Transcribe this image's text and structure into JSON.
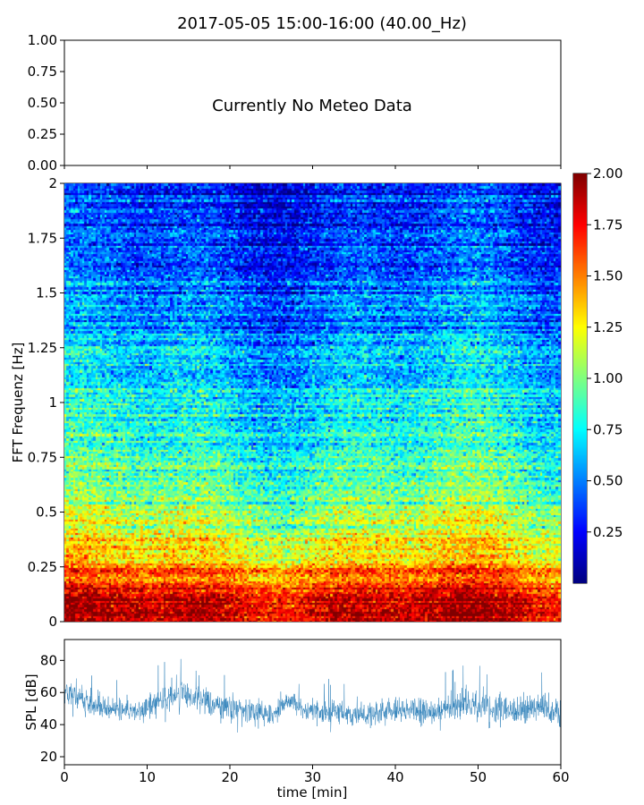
{
  "title": "2017-05-05 15:00-16:00 (40.00_Hz)",
  "meteo_panel": {
    "message": "Currently No Meteo Data",
    "yticks": [
      "1.00",
      "0.75",
      "0.50",
      "0.25",
      "0.00"
    ]
  },
  "chart_data": [
    {
      "type": "line",
      "panel": "meteo",
      "series": [],
      "ylim": [
        0,
        1
      ],
      "yticks": [
        0,
        0.25,
        0.5,
        0.75,
        1.0
      ],
      "ytick_labels": [
        "0.00",
        "0.25",
        "0.50",
        "0.75",
        "1.00"
      ],
      "annotation": "Currently No Meteo Data",
      "xlim": [
        0,
        60
      ],
      "xticks": [
        0,
        10,
        20,
        30,
        40,
        50,
        60
      ]
    },
    {
      "type": "heatmap",
      "panel": "spectrogram",
      "ylabel": "FFT Frequenz [Hz]",
      "xlim": [
        0,
        60
      ],
      "ylim": [
        0,
        2
      ],
      "yticks": [
        0,
        0.25,
        0.5,
        0.75,
        1,
        1.25,
        1.5,
        1.75,
        2
      ],
      "ytick_labels": [
        "0",
        "0.25",
        "0.5",
        "0.75",
        "1",
        "1.25",
        "1.5",
        "1.75",
        "2"
      ],
      "colormap": "jet",
      "color_range": [
        0,
        2.0
      ],
      "colorbar_ticks": [
        "2.00",
        "1.75",
        "1.50",
        "1.25",
        "1.00",
        "0.75",
        "0.50",
        "0.25"
      ],
      "profile": {
        "frequency_hz": [
          0,
          0.1,
          0.25,
          0.5,
          0.75,
          1.0,
          1.25,
          1.5,
          1.75,
          2.0
        ],
        "typical_value": [
          1.95,
          1.8,
          1.45,
          1.05,
          0.85,
          0.7,
          0.6,
          0.45,
          0.35,
          0.3
        ]
      }
    },
    {
      "type": "line",
      "panel": "spl",
      "xlabel": "time [min]",
      "ylabel": "SPL [dB]",
      "xlim": [
        0,
        60
      ],
      "ylim": [
        15,
        93
      ],
      "xticks": [
        0,
        10,
        20,
        30,
        40,
        50,
        60
      ],
      "yticks": [
        20,
        40,
        60,
        80
      ],
      "color": "#1f77b4",
      "series": [
        {
          "x": [
            0,
            3,
            6,
            9,
            12,
            14,
            16,
            19,
            22,
            25,
            27,
            30,
            33,
            36,
            39,
            42,
            45,
            48,
            51,
            54,
            57,
            60
          ],
          "mean": [
            60,
            53,
            50,
            48,
            56,
            60,
            56,
            51,
            50,
            46,
            55,
            47,
            48,
            46,
            48,
            50,
            47,
            53,
            50,
            49,
            51,
            48
          ],
          "min": [
            40,
            38,
            36,
            35,
            40,
            44,
            40,
            35,
            35,
            32,
            40,
            33,
            35,
            33,
            34,
            35,
            33,
            37,
            34,
            33,
            36,
            34
          ],
          "max": [
            82,
            75,
            70,
            68,
            80,
            86,
            78,
            72,
            70,
            65,
            72,
            66,
            70,
            66,
            70,
            72,
            68,
            82,
            75,
            70,
            80,
            72
          ]
        }
      ]
    }
  ],
  "colors": {
    "line": "#1f77b4",
    "axes": "#000000",
    "background": "#ffffff"
  }
}
